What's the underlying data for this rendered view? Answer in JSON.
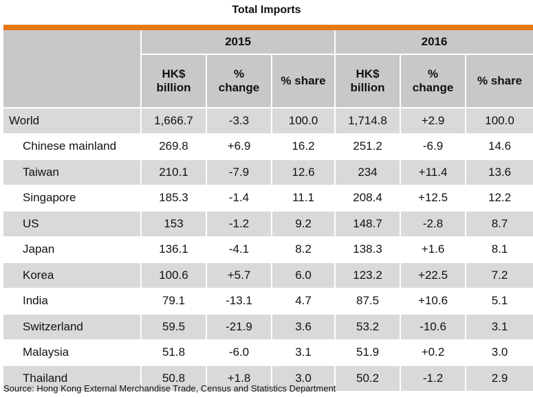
{
  "title": "Total Imports",
  "years": [
    "2015",
    "2016"
  ],
  "subheaders": [
    [
      "HK$",
      "billion"
    ],
    [
      "%",
      "change"
    ],
    [
      "% share"
    ],
    [
      "HK$",
      "billion"
    ],
    [
      "%",
      "change"
    ],
    [
      "% share"
    ]
  ],
  "rows": [
    {
      "name": "World",
      "v": [
        "1,666.7",
        "-3.3",
        "100.0",
        "1,714.8",
        "+2.9",
        "100.0"
      ]
    },
    {
      "name": "Chinese mainland",
      "v": [
        "269.8",
        "+6.9",
        "16.2",
        "251.2",
        "-6.9",
        "14.6"
      ]
    },
    {
      "name": "Taiwan",
      "v": [
        "210.1",
        "-7.9",
        "12.6",
        "234",
        "+11.4",
        "13.6"
      ]
    },
    {
      "name": "Singapore",
      "v": [
        "185.3",
        "-1.4",
        "11.1",
        "208.4",
        "+12.5",
        "12.2"
      ]
    },
    {
      "name": "US",
      "v": [
        "153",
        "-1.2",
        "9.2",
        "148.7",
        "-2.8",
        "8.7"
      ]
    },
    {
      "name": "Japan",
      "v": [
        "136.1",
        "-4.1",
        "8.2",
        "138.3",
        "+1.6",
        "8.1"
      ]
    },
    {
      "name": "Korea",
      "v": [
        "100.6",
        "+5.7",
        "6.0",
        "123.2",
        "+22.5",
        "7.2"
      ]
    },
    {
      "name": "India",
      "v": [
        "79.1",
        "-13.1",
        "4.7",
        "87.5",
        "+10.6",
        "5.1"
      ]
    },
    {
      "name": "Switzerland",
      "v": [
        "59.5",
        "-21.9",
        "3.6",
        "53.2",
        "-10.6",
        "3.1"
      ]
    },
    {
      "name": "Malaysia",
      "v": [
        "51.8",
        "-6.0",
        "3.1",
        "51.9",
        "+0.2",
        "3.0"
      ]
    },
    {
      "name": "Thailand",
      "v": [
        "50.8",
        "+1.8",
        "3.0",
        "50.2",
        "-1.2",
        "2.9"
      ]
    }
  ],
  "source": "Source: Hong Kong External Merchandise Trade, Census and Statistics Department",
  "colors": {
    "accent_bar": "#e67817",
    "header_bg": "#c8c8c8",
    "stripe_bg": "#d9d9d9"
  }
}
